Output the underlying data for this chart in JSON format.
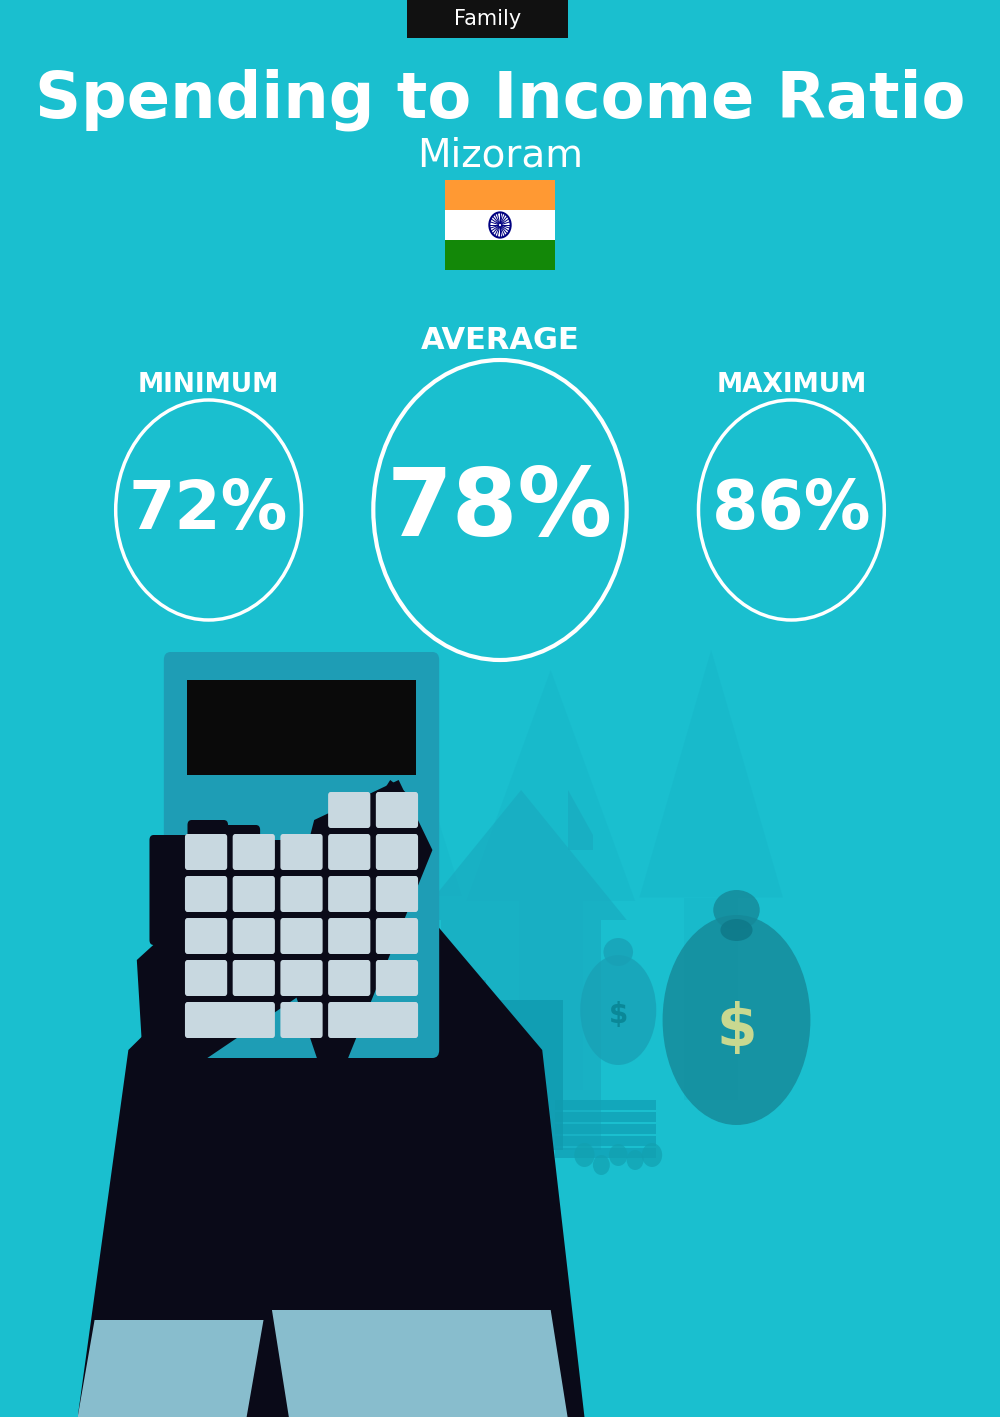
{
  "bg_color": "#1ABFCF",
  "title_tag": "Family",
  "title_tag_bg": "#111111",
  "title_tag_fg": "#ffffff",
  "main_title": "Spending to Income Ratio",
  "subtitle": "Mizoram",
  "avg_label": "AVERAGE",
  "min_label": "MINIMUM",
  "max_label": "MAXIMUM",
  "avg_value": "78%",
  "min_value": "72%",
  "max_value": "86%",
  "circle_color": "#ffffff",
  "text_color": "#ffffff",
  "flag_orange": "#FF9933",
  "flag_white": "#ffffff",
  "flag_green": "#138808",
  "flag_chakra": "#000080",
  "arrow_color": "#17AABF",
  "house_color": "#18AABF",
  "calc_body": "#1E9DB5",
  "calc_screen": "#0a0a0a",
  "btn_color": "#c8d8e0",
  "hand_dark": "#0a0a18",
  "cuff_color": "#90C8D8",
  "bag_color": "#18A0B5",
  "bag2_color": "#158898"
}
